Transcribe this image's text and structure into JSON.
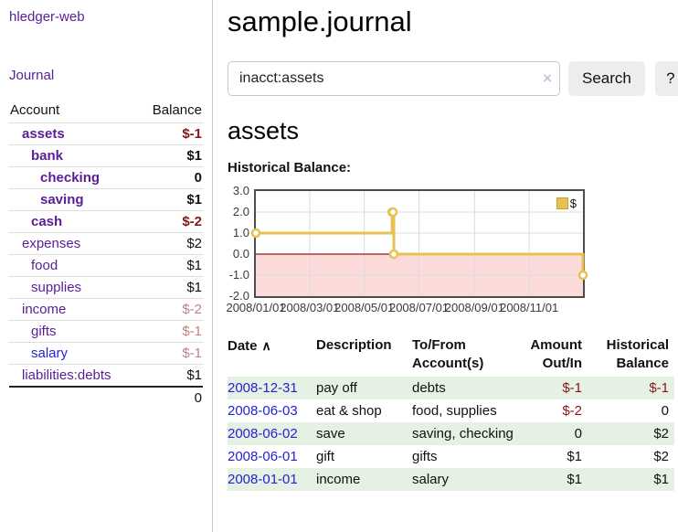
{
  "app": {
    "title": "hledger-web"
  },
  "colors": {
    "purple_link": "#5a1d9a",
    "blue_link": "#2323d4",
    "neg_strong": "#8c1515",
    "neg_faded": "#c08282",
    "stripe_green": "#e5f1e3",
    "series_gold": "#e7c152",
    "negative_region_pink": "#fbdada",
    "zero_line_red": "#9e1616",
    "grid_gray": "#dcdcdc"
  },
  "icons": {
    "clear_x": "×",
    "sort_asc": "∧",
    "legend_swatch": "gold-square"
  },
  "sidebar": {
    "journal_link": "Journal",
    "headers": {
      "account": "Account",
      "balance": "Balance"
    },
    "rows": [
      {
        "name": "assets",
        "depth": 1,
        "bold": true,
        "name_color": "purple",
        "balance": "$-1",
        "balance_color": "negstrong"
      },
      {
        "name": "bank",
        "depth": 2,
        "bold": true,
        "name_color": "purple",
        "balance": "$1",
        "balance_color": "pos"
      },
      {
        "name": "checking",
        "depth": 3,
        "bold": true,
        "name_color": "purple",
        "balance": "0",
        "balance_color": "pos"
      },
      {
        "name": "saving",
        "depth": 3,
        "bold": true,
        "name_color": "purple",
        "balance": "$1",
        "balance_color": "pos"
      },
      {
        "name": "cash",
        "depth": 2,
        "bold": true,
        "name_color": "purple",
        "balance": "$-2",
        "balance_color": "negstrong"
      },
      {
        "name": "expenses",
        "depth": 1,
        "bold": false,
        "name_color": "purple",
        "balance": "$2",
        "balance_color": "pos"
      },
      {
        "name": "food",
        "depth": 2,
        "bold": false,
        "name_color": "purple",
        "balance": "$1",
        "balance_color": "pos"
      },
      {
        "name": "supplies",
        "depth": 2,
        "bold": false,
        "name_color": "purple",
        "balance": "$1",
        "balance_color": "pos"
      },
      {
        "name": "income",
        "depth": 1,
        "bold": false,
        "name_color": "purple",
        "balance": "$-2",
        "balance_color": "negfaded"
      },
      {
        "name": "gifts",
        "depth": 2,
        "bold": false,
        "name_color": "purple",
        "balance": "$-1",
        "balance_color": "negfaded"
      },
      {
        "name": "salary",
        "depth": 2,
        "bold": false,
        "name_color": "blue",
        "balance": "$-1",
        "balance_color": "negfaded"
      },
      {
        "name": "liabilities:debts",
        "depth": 1,
        "bold": false,
        "name_color": "purple",
        "balance": "$1",
        "balance_color": "pos"
      }
    ],
    "total": "0"
  },
  "main": {
    "title": "sample.journal",
    "search": {
      "value": "inacct:assets",
      "button_label": "Search",
      "help_label": "?"
    },
    "account_heading": "assets",
    "chart_heading": "Historical Balance:"
  },
  "chart_data": {
    "type": "line",
    "title": "Historical Balance",
    "step": true,
    "x_range": [
      "2008-01-01",
      "2008-12-31"
    ],
    "ylim": [
      -2,
      3
    ],
    "y_ticks": [
      {
        "value": 3,
        "label": "3.0"
      },
      {
        "value": 2,
        "label": "2.0"
      },
      {
        "value": 1,
        "label": "1.0"
      },
      {
        "value": 0,
        "label": "0.0"
      },
      {
        "value": -1,
        "label": "-1.0"
      },
      {
        "value": -2,
        "label": "-2.0"
      }
    ],
    "x_ticks": [
      {
        "date": "2008-01-01",
        "label": "2008/01/01"
      },
      {
        "date": "2008-03-01",
        "label": "2008/03/01"
      },
      {
        "date": "2008-05-01",
        "label": "2008/05/01"
      },
      {
        "date": "2008-07-01",
        "label": "2008/07/01"
      },
      {
        "date": "2008-09-01",
        "label": "2008/09/01"
      },
      {
        "date": "2008-11-01",
        "label": "2008/11/01"
      }
    ],
    "series": [
      {
        "name": "$",
        "points": [
          [
            "2008-01-01",
            1
          ],
          [
            "2008-06-01",
            2
          ],
          [
            "2008-06-02",
            2
          ],
          [
            "2008-06-03",
            0
          ],
          [
            "2008-12-31",
            -1
          ]
        ]
      }
    ],
    "legend_position": "top-right",
    "grid": true,
    "negative_region_shaded": true
  },
  "register": {
    "headers": [
      {
        "label": "Date",
        "align": "left",
        "sorted": "asc"
      },
      {
        "label": "Description",
        "align": "left"
      },
      {
        "label": "To/From\nAccount(s)",
        "align": "left"
      },
      {
        "label": "Amount\nOut/In",
        "align": "right"
      },
      {
        "label": "Historical\nBalance",
        "align": "right"
      }
    ],
    "rows": [
      {
        "date": "2008-12-31",
        "description": "pay off",
        "accounts": "debts",
        "amount": "$-1",
        "amount_neg": true,
        "balance": "$-1",
        "balance_neg": true
      },
      {
        "date": "2008-06-03",
        "description": "eat & shop",
        "accounts": "food, supplies",
        "amount": "$-2",
        "amount_neg": true,
        "balance": "0",
        "balance_neg": false
      },
      {
        "date": "2008-06-02",
        "description": "save",
        "accounts": "saving, checking",
        "amount": "0",
        "amount_neg": false,
        "balance": "$2",
        "balance_neg": false
      },
      {
        "date": "2008-06-01",
        "description": "gift",
        "accounts": "gifts",
        "amount": "$1",
        "amount_neg": false,
        "balance": "$2",
        "balance_neg": false
      },
      {
        "date": "2008-01-01",
        "description": "income",
        "accounts": "salary",
        "amount": "$1",
        "amount_neg": false,
        "balance": "$1",
        "balance_neg": false
      }
    ]
  }
}
